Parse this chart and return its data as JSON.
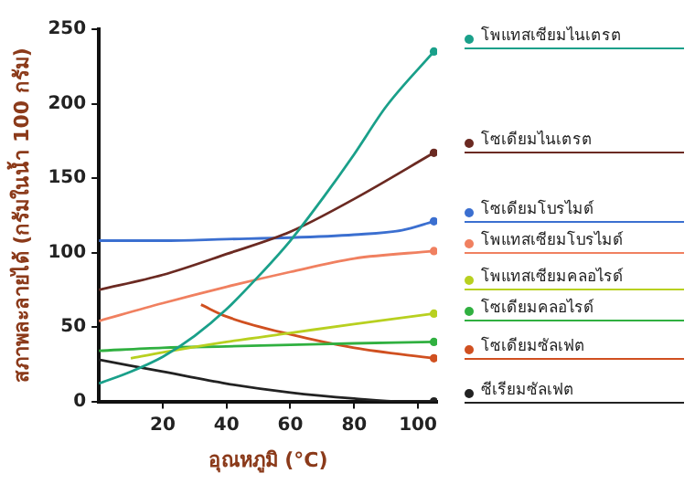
{
  "chart_data": {
    "type": "line",
    "xlabel": "อุณหภูมิ (°C)",
    "ylabel": "สภาพละลายได้ (กรัมในน้ำ 100 กรัม)",
    "xlim": [
      0,
      106
    ],
    "xticks": [
      20,
      40,
      60,
      80,
      100
    ],
    "ylim": [
      0,
      250
    ],
    "yticks": [
      0,
      50,
      100,
      150,
      200,
      250
    ],
    "grid": false,
    "legend": "right",
    "series": [
      {
        "name": "โพแทสเซียมไนเตรต",
        "color": "#1aa08a",
        "x": [
          0,
          10,
          20,
          30,
          40,
          50,
          60,
          70,
          80,
          90,
          105
        ],
        "values": [
          12,
          20,
          30,
          44,
          62,
          84,
          108,
          136,
          166,
          198,
          235
        ]
      },
      {
        "name": "โซเดียมไนเตรต",
        "color": "#6b2a22",
        "x": [
          0,
          20,
          40,
          60,
          80,
          105
        ],
        "values": [
          75,
          85,
          99,
          114,
          136,
          167
        ]
      },
      {
        "name": "โซเดียมโบรไมด์",
        "color": "#3b6fd0",
        "x": [
          0,
          20,
          40,
          60,
          80,
          95,
          105
        ],
        "values": [
          108,
          108,
          109,
          110,
          112,
          115,
          121
        ]
      },
      {
        "name": "โพแทสเซียมโบรไมด์",
        "color": "#f08060",
        "x": [
          0,
          20,
          40,
          60,
          80,
          105
        ],
        "values": [
          54,
          66,
          77,
          87,
          96,
          101
        ]
      },
      {
        "name": "โพแทสเซียมคลอไรด์",
        "color": "#b8d020",
        "x": [
          10,
          20,
          40,
          60,
          80,
          105
        ],
        "values": [
          29,
          33,
          40,
          46,
          52,
          59
        ]
      },
      {
        "name": "โซเดียมคลอไรด์",
        "color": "#30b040",
        "x": [
          0,
          20,
          40,
          60,
          80,
          105
        ],
        "values": [
          34,
          36,
          37,
          38,
          39,
          40
        ]
      },
      {
        "name": "โซเดียมซัลเฟต",
        "color": "#d05020",
        "x": [
          32,
          40,
          60,
          80,
          105
        ],
        "values": [
          65,
          57,
          45,
          36,
          29
        ]
      },
      {
        "name": "ซีเรียมซัลเฟต",
        "color": "#222222",
        "x": [
          0,
          20,
          40,
          60,
          80,
          95,
          105
        ],
        "values": [
          28,
          20,
          12,
          6,
          2,
          0,
          0
        ]
      }
    ]
  }
}
